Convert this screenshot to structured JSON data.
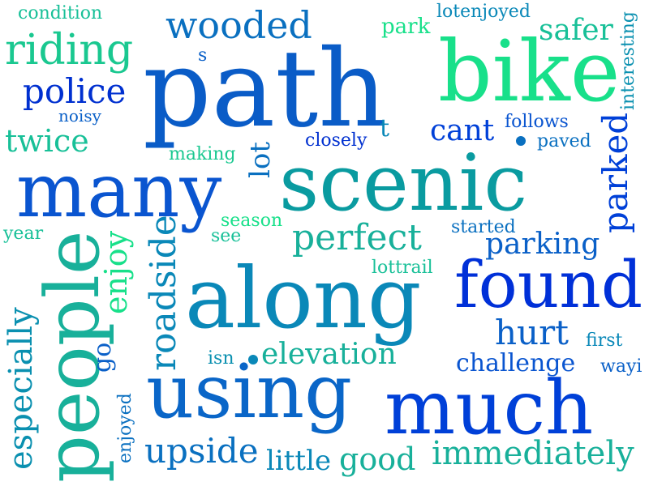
{
  "words": [
    {
      "text": "path",
      "color": "#0a5cc7"
    },
    {
      "text": "bike",
      "color": "#18e08a"
    },
    {
      "text": "scenic",
      "color": "#0a9ba0"
    },
    {
      "text": "many",
      "color": "#0a55d0"
    },
    {
      "text": "along",
      "color": "#0a88b8"
    },
    {
      "text": "found",
      "color": "#0030d8"
    },
    {
      "text": "using",
      "color": "#0a66c8"
    },
    {
      "text": "much",
      "color": "#0040d8"
    },
    {
      "text": "people",
      "color": "#18b09a"
    },
    {
      "text": "wooded",
      "color": "#0a70c0"
    },
    {
      "text": "riding",
      "color": "#1ac890"
    },
    {
      "text": "police",
      "color": "#0030d0"
    },
    {
      "text": "noisy",
      "color": "#0a60c8"
    },
    {
      "text": "twice",
      "color": "#18c098"
    },
    {
      "text": "condition",
      "color": "#18c098"
    },
    {
      "text": "park",
      "color": "#18e08a"
    },
    {
      "text": "lotenjoyed",
      "color": "#0a88b8"
    },
    {
      "text": "safer",
      "color": "#18c098"
    },
    {
      "text": "interesting",
      "color": "#0a90b0"
    },
    {
      "text": "cant",
      "color": "#0040d8"
    },
    {
      "text": "follows",
      "color": "#0a55d0"
    },
    {
      "text": "paved",
      "color": "#0a70c0"
    },
    {
      "text": "closely",
      "color": "#0030d0"
    },
    {
      "text": "making",
      "color": "#1ac890"
    },
    {
      "text": "parked",
      "color": "#0040d8"
    },
    {
      "text": "perfect",
      "color": "#18b09a"
    },
    {
      "text": "started",
      "color": "#0a70c0"
    },
    {
      "text": "parking",
      "color": "#0a60c8"
    },
    {
      "text": "season",
      "color": "#18e08a"
    },
    {
      "text": "see",
      "color": "#18c098"
    },
    {
      "text": "year",
      "color": "#18c098"
    },
    {
      "text": "enjoy",
      "color": "#18e08a"
    },
    {
      "text": "lottrail",
      "color": "#18c098"
    },
    {
      "text": "roadside",
      "color": "#0a88b8"
    },
    {
      "text": "lot",
      "color": "#0a70c0"
    },
    {
      "text": "hurt",
      "color": "#0a60c8"
    },
    {
      "text": "first",
      "color": "#0a88b8"
    },
    {
      "text": "isn",
      "color": "#0a90b0"
    },
    {
      "text": "elevation",
      "color": "#18b09a"
    },
    {
      "text": "challenge",
      "color": "#0a55d0"
    },
    {
      "text": "wayi",
      "color": "#0a60c8"
    },
    {
      "text": "especially",
      "color": "#0a90b0"
    },
    {
      "text": "go",
      "color": "#0a60c8"
    },
    {
      "text": "enjoyed",
      "color": "#0a70c0"
    },
    {
      "text": "upside",
      "color": "#0a70c0"
    },
    {
      "text": "little",
      "color": "#0a88b8"
    },
    {
      "text": "good",
      "color": "#18b09a"
    },
    {
      "text": "immediately",
      "color": "#18b09a"
    },
    {
      "text": "s",
      "color": "#0a60c8"
    },
    {
      "text": "t",
      "color": "#0a88b8"
    }
  ],
  "dots": [
    {
      "color": "#0a88b8"
    },
    {
      "color": "#0a70c0"
    }
  ]
}
